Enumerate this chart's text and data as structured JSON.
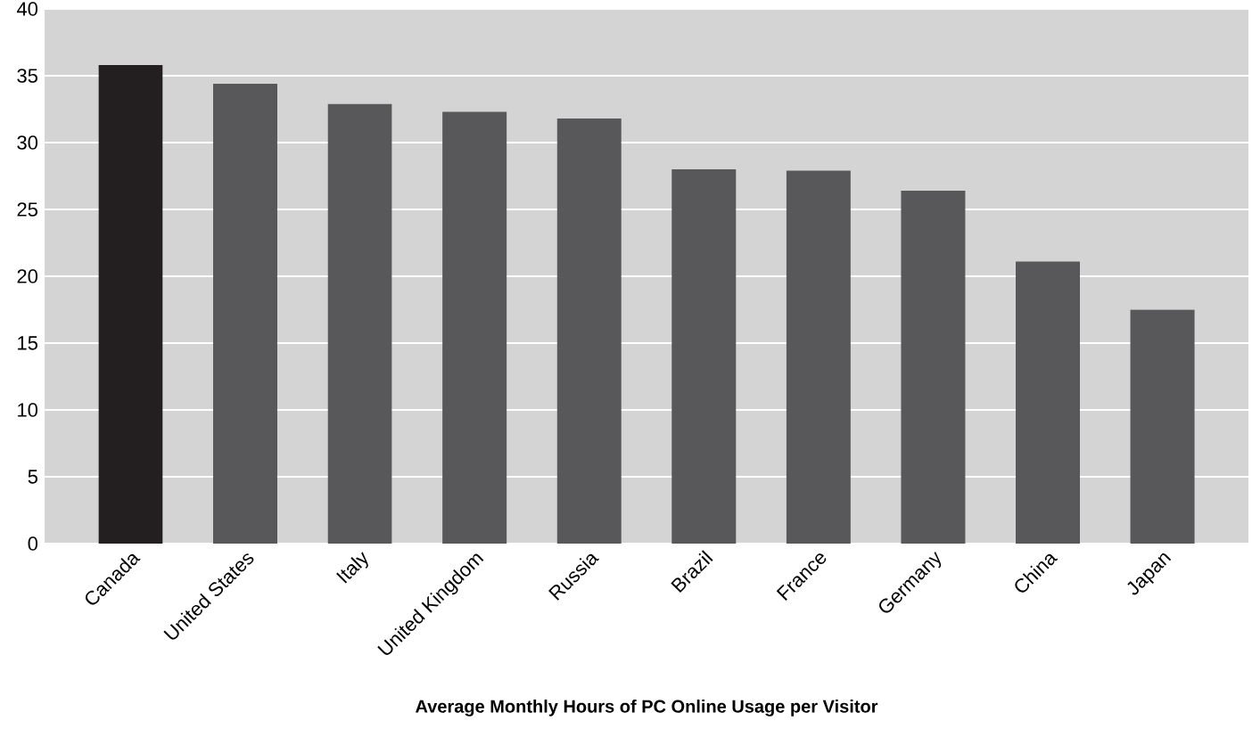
{
  "chart_data": {
    "type": "bar",
    "title": "Average Monthly Hours of PC Online Usage per Visitor",
    "categories": [
      "Canada",
      "United States",
      "Italy",
      "United Kingdom",
      "Russia",
      "Brazil",
      "France",
      "Germany",
      "China",
      "Japan"
    ],
    "values": [
      35.8,
      34.4,
      32.9,
      32.3,
      31.8,
      28.0,
      27.9,
      26.4,
      21.1,
      17.5
    ],
    "colors": [
      "#231f20",
      "#58585a",
      "#58585a",
      "#58585a",
      "#58585a",
      "#58585a",
      "#58585a",
      "#58585a",
      "#58585a",
      "#58585a"
    ],
    "ylim": [
      0,
      40
    ],
    "yticks": [
      0,
      5,
      10,
      15,
      20,
      25,
      30,
      35,
      40
    ],
    "grid": "y"
  }
}
